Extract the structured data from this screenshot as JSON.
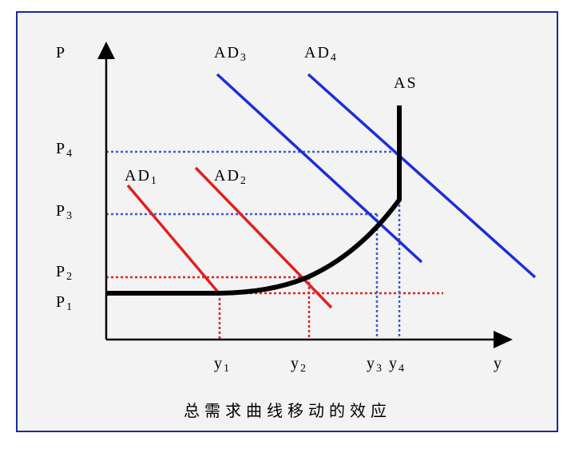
{
  "axes": {
    "price": "P",
    "output": "y"
  },
  "curves": {
    "ad1": {
      "base": "AD",
      "sub": "1"
    },
    "ad2": {
      "base": "AD",
      "sub": "2"
    },
    "ad3": {
      "base": "AD",
      "sub": "3"
    },
    "ad4": {
      "base": "AD",
      "sub": "4"
    },
    "as": "AS"
  },
  "price_levels": [
    {
      "base": "P",
      "sub": "1"
    },
    {
      "base": "P",
      "sub": "2"
    },
    {
      "base": "P",
      "sub": "3"
    },
    {
      "base": "P",
      "sub": "4"
    }
  ],
  "output_levels": [
    {
      "base": "y",
      "sub": "1"
    },
    {
      "base": "y",
      "sub": "2"
    },
    {
      "base": "y",
      "sub": "3"
    },
    {
      "base": "y",
      "sub": "4"
    }
  ],
  "caption": "总需求曲线移动的效应"
}
